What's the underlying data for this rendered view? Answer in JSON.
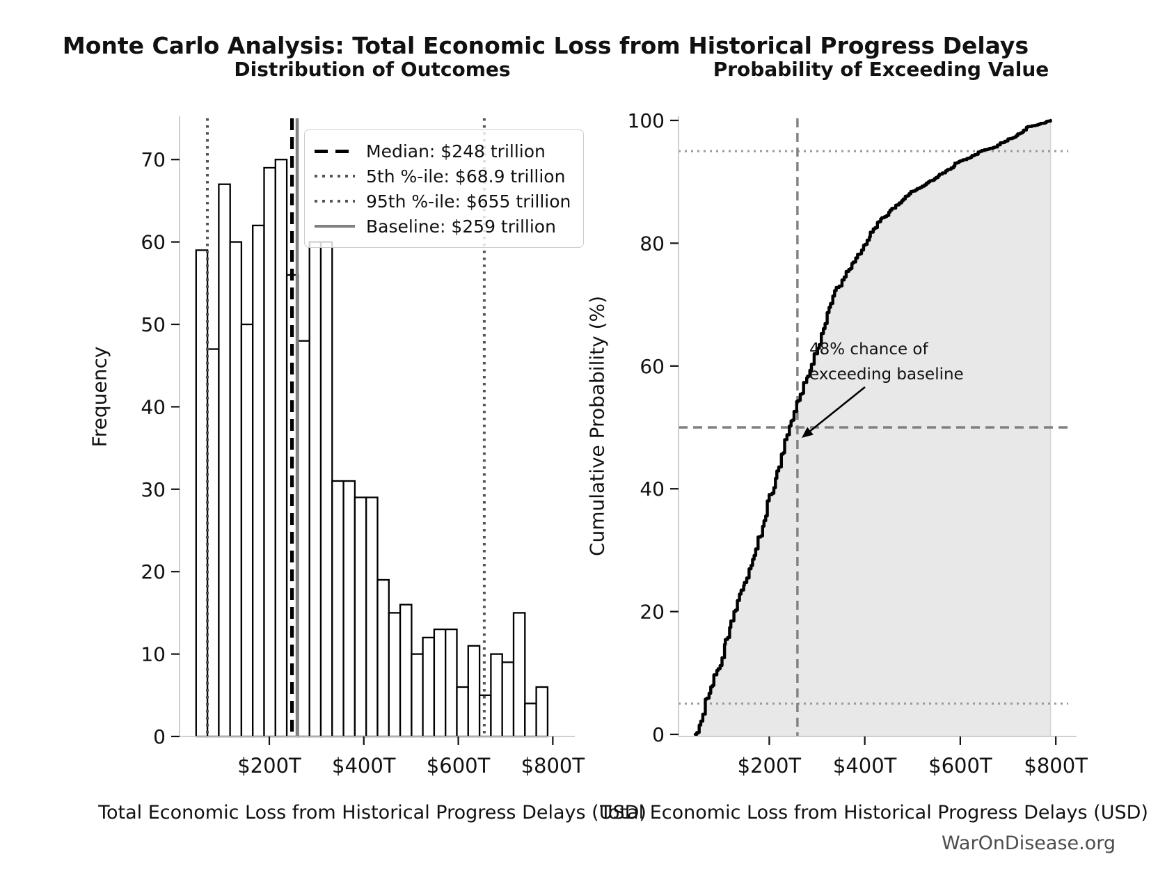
{
  "title": "Monte Carlo Analysis: Total Economic Loss from Historical Progress Delays",
  "watermark": "WarOnDisease.org",
  "colors": {
    "background": "#ffffff",
    "bar_fill": "#ffffff",
    "bar_edge": "#000000",
    "median_line": "#000000",
    "percentile_line": "#555555",
    "baseline_line": "#808080",
    "dashed_ref": "#808080",
    "dotted_ref": "#999999",
    "cdf_line": "#000000",
    "cdf_fill": "#e8e8e8",
    "spine": "#c9c9c9",
    "tick": "#111111",
    "watermark_text": "#4d4d4d"
  },
  "left_plot": {
    "title": "Distribution of Outcomes",
    "xlabel": "Total Economic Loss from Historical Progress Delays (USD)",
    "ylabel": "Frequency",
    "legend": [
      {
        "label": "Median: $248 trillion",
        "style": "dashed-black"
      },
      {
        "label": "5th %-ile: $68.9 trillion",
        "style": "dotted-gray"
      },
      {
        "label": "95th %-ile: $655 trillion",
        "style": "dotted-gray"
      },
      {
        "label": "Baseline: $259 trillion",
        "style": "solid-gray"
      }
    ]
  },
  "right_plot": {
    "title": "Probability of Exceeding Value",
    "xlabel": "Total Economic Loss from Historical Progress Delays (USD)",
    "ylabel": "Cumulative Probability (%)",
    "annotation": "48% chance of\nexceeding baseline"
  },
  "chart_data": [
    {
      "type": "bar",
      "subtype": "histogram",
      "title": "Distribution of Outcomes",
      "xlabel": "Total Economic Loss from Historical Progress Delays (USD)",
      "ylabel": "Frequency",
      "unit": "trillion USD",
      "bin_start": 45,
      "bin_width": 24,
      "counts": [
        59,
        47,
        67,
        60,
        50,
        62,
        69,
        70,
        56,
        48,
        60,
        60,
        31,
        31,
        29,
        29,
        19,
        15,
        16,
        10,
        12,
        13,
        13,
        6,
        11,
        5,
        10,
        9,
        15,
        4,
        6
      ],
      "xlim": [
        10,
        826
      ],
      "ylim": [
        0,
        75
      ],
      "grid": false,
      "x_ticks": [
        {
          "value": 200,
          "label": "$200T"
        },
        {
          "value": 400,
          "label": "$400T"
        },
        {
          "value": 600,
          "label": "$600T"
        },
        {
          "value": 800,
          "label": "$800T"
        }
      ],
      "y_ticks": [
        0,
        10,
        20,
        30,
        40,
        50,
        60,
        70
      ],
      "vlines": [
        {
          "name": "p5",
          "value": 68.9,
          "style": "dotted-gray-dark",
          "label": "5th %-ile: $68.9 trillion"
        },
        {
          "name": "p95",
          "value": 655,
          "style": "dotted-gray-dark",
          "label": "95th %-ile: $655 trillion"
        },
        {
          "name": "median",
          "value": 248,
          "style": "dashed-black",
          "label": "Median: $248 trillion"
        },
        {
          "name": "baseline",
          "value": 259,
          "style": "solid-gray",
          "label": "Baseline: $259 trillion"
        }
      ],
      "legend_position": "upper right"
    },
    {
      "type": "line",
      "subtype": "empirical-cdf",
      "title": "Probability of Exceeding Value",
      "xlabel": "Total Economic Loss from Historical Progress Delays (USD)",
      "ylabel": "Cumulative Probability (%)",
      "unit": "trillion USD vs percent",
      "fill_under": true,
      "points": [
        [
          45,
          0
        ],
        [
          69,
          5.9
        ],
        [
          93,
          10.7
        ],
        [
          117,
          17.4
        ],
        [
          141,
          23.5
        ],
        [
          165,
          28.5
        ],
        [
          189,
          34.8
        ],
        [
          213,
          41.7
        ],
        [
          237,
          48.8
        ],
        [
          261,
          54.4
        ],
        [
          285,
          59.3
        ],
        [
          309,
          65.3
        ],
        [
          333,
          71.4
        ],
        [
          357,
          74.5
        ],
        [
          381,
          77.6
        ],
        [
          405,
          80.5
        ],
        [
          429,
          83.5
        ],
        [
          453,
          85.4
        ],
        [
          477,
          86.9
        ],
        [
          501,
          88.5
        ],
        [
          525,
          89.5
        ],
        [
          549,
          90.7
        ],
        [
          573,
          92.0
        ],
        [
          597,
          93.3
        ],
        [
          621,
          94.0
        ],
        [
          645,
          95.1
        ],
        [
          669,
          95.6
        ],
        [
          693,
          96.6
        ],
        [
          717,
          97.5
        ],
        [
          741,
          99.0
        ],
        [
          765,
          99.4
        ],
        [
          789,
          100
        ]
      ],
      "xlim": [
        10,
        826
      ],
      "ylim": [
        0,
        100
      ],
      "grid": false,
      "x_ticks": [
        {
          "value": 200,
          "label": "$200T"
        },
        {
          "value": 400,
          "label": "$400T"
        },
        {
          "value": 600,
          "label": "$600T"
        },
        {
          "value": 800,
          "label": "$800T"
        }
      ],
      "y_ticks": [
        0,
        20,
        40,
        60,
        80,
        100
      ],
      "hlines": [
        {
          "name": "p5-level",
          "value": 5,
          "style": "dotted-gray"
        },
        {
          "name": "fifty-percent",
          "value": 50,
          "style": "dashed-gray"
        },
        {
          "name": "p95-level",
          "value": 95,
          "style": "dotted-gray"
        }
      ],
      "vlines": [
        {
          "name": "baseline",
          "value": 259,
          "style": "dashed-gray"
        }
      ],
      "annotation": {
        "text": "48% chance of\nexceeding baseline",
        "arrow_from": [
          1243,
          556
        ],
        "arrow_to": [
          1152,
          629
        ]
      }
    }
  ]
}
